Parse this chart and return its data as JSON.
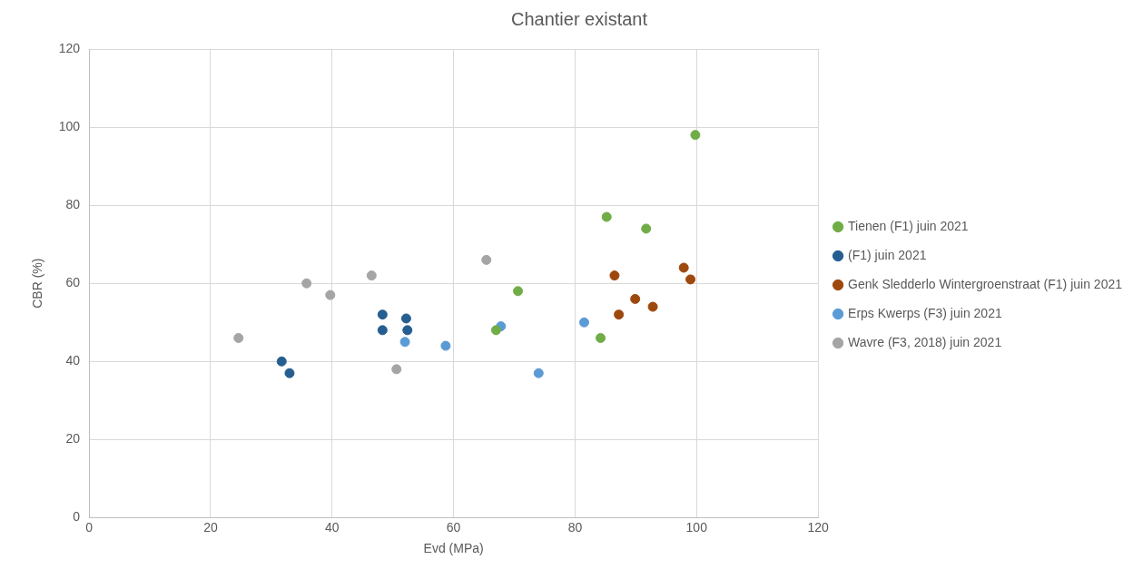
{
  "chart_data": {
    "type": "scatter",
    "title": "Chantier existant",
    "xlabel": "Evd (MPa)",
    "ylabel": "CBR (%)",
    "xlim": [
      0,
      120
    ],
    "xticks": [
      0,
      20,
      40,
      60,
      80,
      100,
      120
    ],
    "ylim": [
      0,
      120
    ],
    "yticks": [
      0,
      20,
      40,
      60,
      80,
      100,
      120
    ],
    "grid": true,
    "legend": "right",
    "marker": "circle",
    "series": [
      {
        "name": "Tienen (F1) juin 2021",
        "color": "#70ad47",
        "x": [
          67,
          70.6,
          85.2,
          91.7,
          99.8,
          84.2
        ],
        "values": [
          48,
          58,
          77,
          74,
          98,
          46
        ]
      },
      {
        "name": "(F1) juin 2021",
        "color": "#255e91",
        "x": [
          31.7,
          33,
          48.3,
          48.3,
          52.2,
          52.4
        ],
        "values": [
          40,
          37,
          52,
          48,
          51,
          48
        ]
      },
      {
        "name": "Genk Sledderlo Wintergroenstraat (F1) juin 2021",
        "color": "#9e480e",
        "x": [
          86.5,
          87.2,
          89.9,
          92.8,
          97.9,
          99
        ],
        "values": [
          62,
          52,
          56,
          54,
          64,
          61
        ]
      },
      {
        "name": "Erps Kwerps (F3) juin 2021",
        "color": "#5b9bd5",
        "x": [
          52,
          58.7,
          67.8,
          74,
          81.5
        ],
        "values": [
          45,
          44,
          49,
          37,
          50
        ]
      },
      {
        "name": "Wavre (F3, 2018) juin 2021",
        "color": "#a5a5a5",
        "x": [
          24.6,
          35.8,
          39.7,
          46.5,
          50.6,
          65.4
        ],
        "values": [
          46,
          60,
          57,
          62,
          38,
          66
        ]
      }
    ]
  }
}
